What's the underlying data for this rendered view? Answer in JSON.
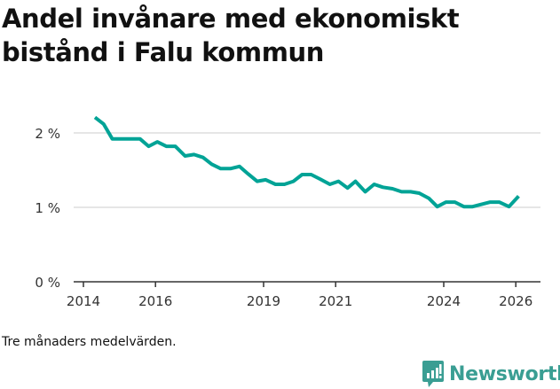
{
  "title": "Andel invånare med ekonomiskt bistånd i Falu kommun",
  "note": "Tre månaders medelvärden.",
  "brand": {
    "name": "Newsworthy",
    "color": "#3a9e93",
    "icon": "chart-bubble-icon"
  },
  "colors": {
    "line": "#00a396",
    "grid": "#dddddd",
    "axis": "#333333"
  },
  "chart_data": {
    "type": "line",
    "title": "Andel invånare med ekonomiskt bistånd i Falu kommun",
    "xlabel": "",
    "ylabel": "",
    "ylim": [
      0,
      2.4
    ],
    "xlim": [
      2014,
      2026.7
    ],
    "y_ticks": [
      "0 %",
      "1 %",
      "2 %"
    ],
    "x_ticks": [
      "2014",
      "2016",
      "2019",
      "2021",
      "2024",
      "2026"
    ],
    "grid": "horizontal",
    "legend": "none",
    "series": [
      {
        "name": "Andel invånare med ekonomiskt bistånd (%)",
        "x": [
          2014.32,
          2014.56,
          2014.8,
          2015.07,
          2015.32,
          2015.57,
          2015.81,
          2016.05,
          2016.3,
          2016.55,
          2016.82,
          2017.07,
          2017.32,
          2017.56,
          2017.81,
          2018.08,
          2018.33,
          2018.57,
          2018.82,
          2019.06,
          2019.33,
          2019.58,
          2019.83,
          2020.07,
          2020.32,
          2020.57,
          2020.84,
          2021.08,
          2021.33,
          2021.55,
          2021.82,
          2022.07,
          2022.31,
          2022.58,
          2022.83,
          2023.08,
          2023.32,
          2023.59,
          2023.82,
          2024.06,
          2024.31,
          2024.56,
          2024.8,
          2025.05,
          2025.29,
          2025.54,
          2025.81,
          2026.08
        ],
        "values": [
          2.21,
          2.12,
          1.92,
          1.92,
          1.92,
          1.92,
          1.82,
          1.88,
          1.82,
          1.82,
          1.69,
          1.71,
          1.67,
          1.58,
          1.52,
          1.52,
          1.55,
          1.45,
          1.35,
          1.37,
          1.31,
          1.31,
          1.35,
          1.44,
          1.44,
          1.38,
          1.31,
          1.35,
          1.26,
          1.35,
          1.21,
          1.31,
          1.27,
          1.25,
          1.21,
          1.21,
          1.19,
          1.12,
          1.01,
          1.07,
          1.07,
          1.01,
          1.01,
          1.04,
          1.07,
          1.07,
          1.01,
          1.15
        ]
      }
    ]
  }
}
